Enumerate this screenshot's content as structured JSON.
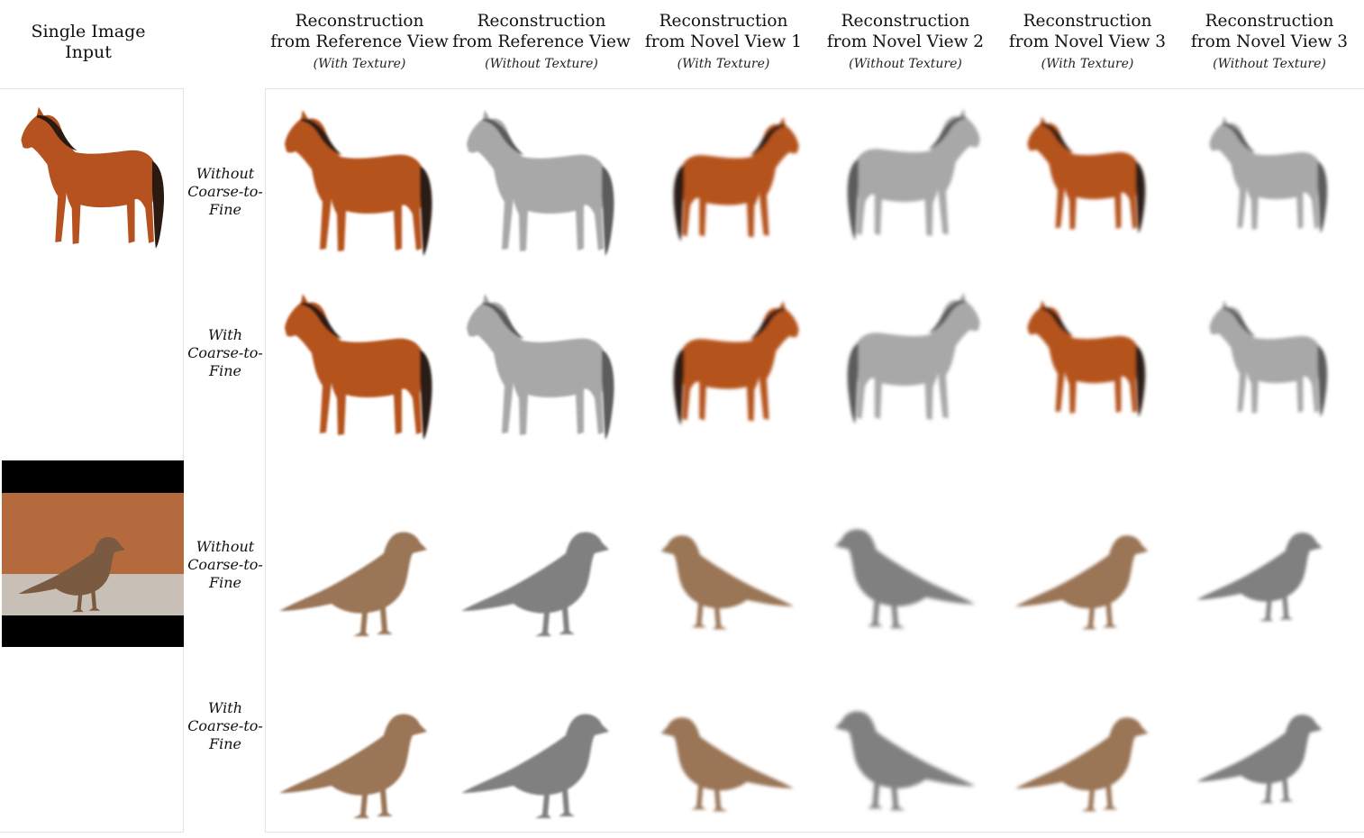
{
  "input_column": {
    "title_line1": "Single Image",
    "title_line2": "Input"
  },
  "columns": [
    {
      "line1": "Reconstruction",
      "line2": "from Reference View",
      "sub": "(With Texture)"
    },
    {
      "line1": "Reconstruction",
      "line2": "from Reference View",
      "sub": "(Without Texture)"
    },
    {
      "line1": "Reconstruction",
      "line2": "from Novel View 1",
      "sub": "(With Texture)"
    },
    {
      "line1": "Reconstruction",
      "line2": "from Novel View 2",
      "sub": "(Without Texture)"
    },
    {
      "line1": "Reconstruction",
      "line2": "from Novel View 3",
      "sub": "(With Texture)"
    },
    {
      "line1": "Reconstruction",
      "line2": "from Novel View 3",
      "sub": "(Without Texture)"
    }
  ],
  "rows": [
    {
      "subject": "horse",
      "label": [
        "Without",
        "Coarse-to-",
        "Fine"
      ]
    },
    {
      "subject": "horse",
      "label": [
        "With",
        "Coarse-to-",
        "Fine"
      ]
    },
    {
      "subject": "sparrow",
      "label": [
        "Without",
        "Coarse-to-",
        "Fine"
      ]
    },
    {
      "subject": "sparrow",
      "label": [
        "With",
        "Coarse-to-",
        "Fine"
      ]
    }
  ],
  "inputs": [
    {
      "subject": "horse"
    },
    {
      "subject": "sparrow"
    }
  ],
  "colors": {
    "horse_coat": "#b5521f",
    "horse_mane": "#2a1a12",
    "bird_body": "#9a7556",
    "gray_render": "#a8a8a8",
    "photo_bg": "#b46a3c"
  }
}
